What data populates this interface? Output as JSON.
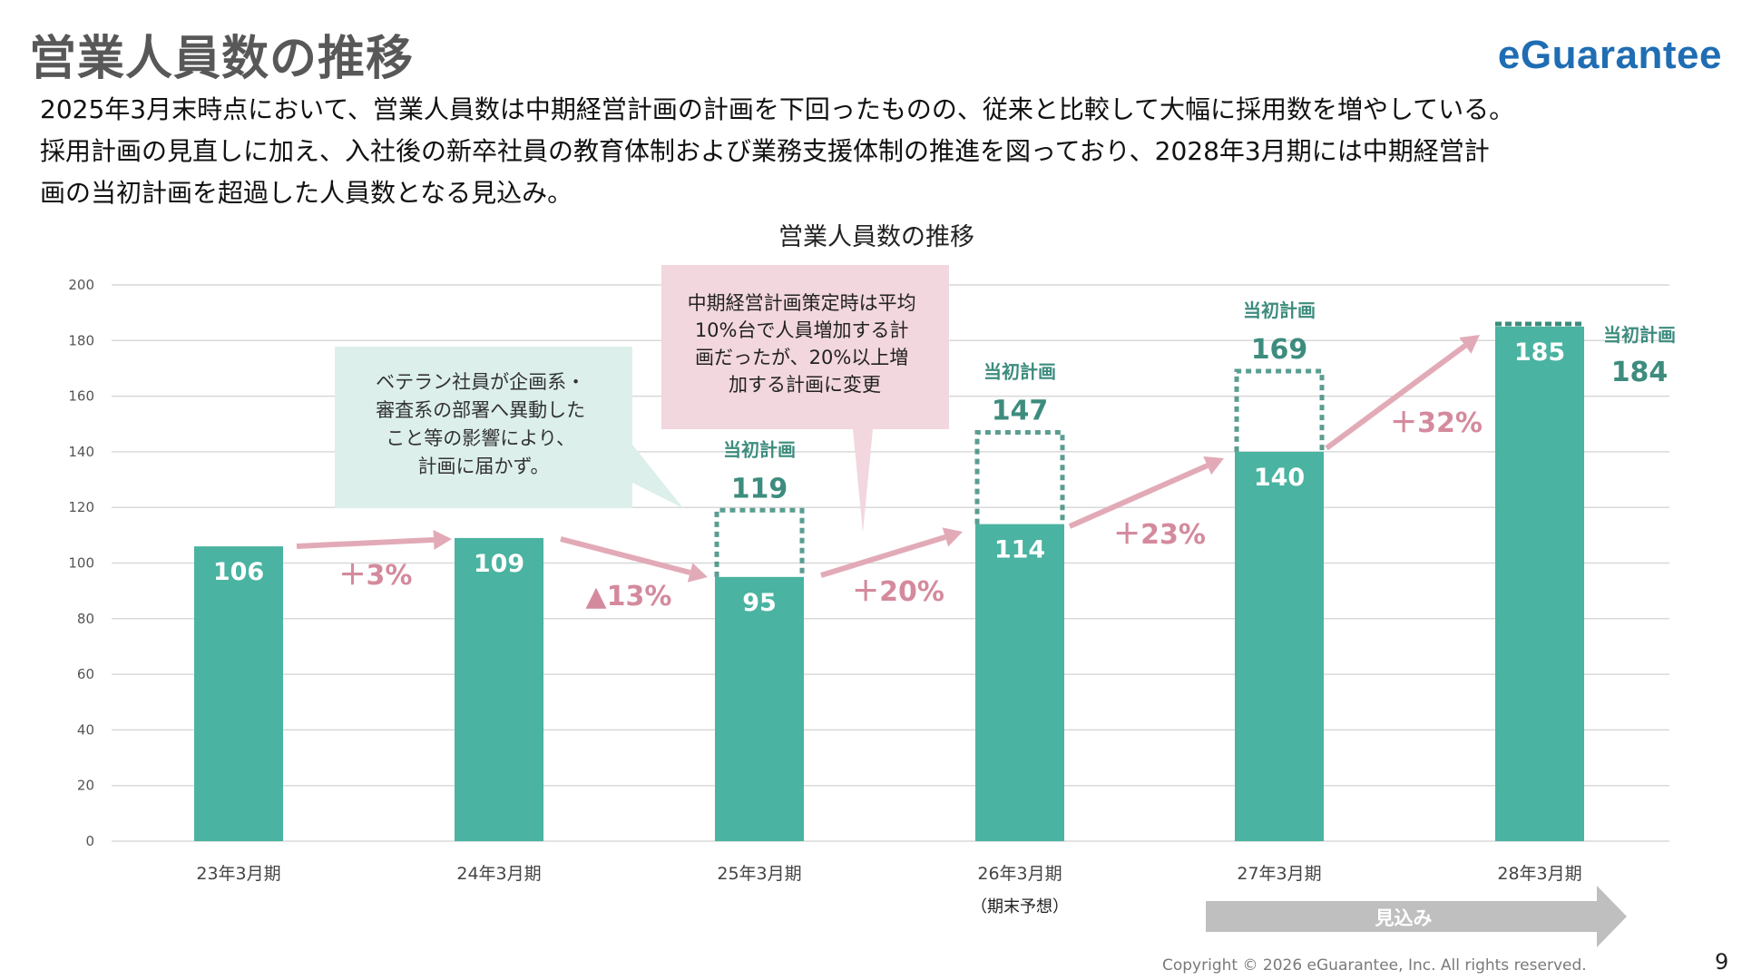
{
  "header": {
    "title": "営業人員数の推移",
    "logo": "eGuarantee"
  },
  "description": [
    "2025年3月末時点において、営業人員数は中期経営計画の計画を下回ったものの、従来と比較して大幅に採用数を増やしている。",
    "採用計画の見直しに加え、入社後の新卒社員の教育体制および業務支援体制の推進を図っており、2028年3月期には中期経営計",
    "画の当初計画を超過した人員数となる見込み。"
  ],
  "chart_data": {
    "type": "bar",
    "title": "営業人員数の推移",
    "categories": [
      "23年3月期",
      "24年3月期",
      "25年3月期",
      "26年3月期",
      "27年3月期",
      "28年3月期"
    ],
    "category_notes": [
      "",
      "",
      "",
      "（期末予想）",
      "",
      ""
    ],
    "series": [
      {
        "values": [
          106,
          109,
          95,
          114,
          140,
          185
        ],
        "color": "#4ab3a1"
      }
    ],
    "plan": {
      "label": "当初計画",
      "values": [
        null,
        null,
        119,
        147,
        169,
        184
      ],
      "color": "#3d8c7e"
    },
    "growth": {
      "labels": [
        "＋3%",
        "▲13%",
        "＋20%",
        "＋23%",
        "＋32%"
      ],
      "color": "#d48a9d",
      "arrow_color": "#e2aab7"
    },
    "yticks": [
      0,
      20,
      40,
      60,
      80,
      100,
      120,
      140,
      160,
      180,
      200
    ],
    "ylim": [
      0,
      200
    ],
    "grid": true,
    "forecast_label": "見込み"
  },
  "callouts": {
    "teal": [
      "ベテラン社員が企画系・",
      "審査系の部署へ異動した",
      "こと等の影響により、",
      "計画に届かず。"
    ],
    "pink": [
      "中期経営計画策定時は平均",
      "10%台で人員増加する計",
      "画だったが、20%以上増",
      "加する計画に変更"
    ]
  },
  "footer": {
    "copyright": "Copyright © 2026 eGuarantee, Inc. All rights reserved.",
    "page_number": "9"
  }
}
